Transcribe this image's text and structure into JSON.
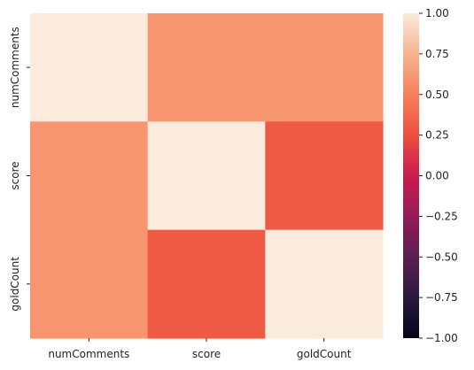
{
  "chart_data": {
    "type": "heatmap",
    "title": "",
    "xlabel": "",
    "ylabel": "",
    "x_categories": [
      "numComments",
      "score",
      "goldCount"
    ],
    "y_categories": [
      "numComments",
      "score",
      "goldCount"
    ],
    "values": [
      [
        1.0,
        0.6,
        0.6
      ],
      [
        0.6,
        1.0,
        0.3
      ],
      [
        0.6,
        0.3,
        1.0
      ]
    ],
    "colorbar": {
      "range": [
        -1.0,
        1.0
      ],
      "ticks": [
        1.0,
        0.75,
        0.5,
        0.25,
        0.0,
        -0.25,
        -0.5,
        -0.75,
        -1.0
      ],
      "tick_labels": [
        "1.00",
        "0.75",
        "0.50",
        "0.25",
        "0.00",
        "−0.25",
        "−0.50",
        "−0.75",
        "−1.00"
      ]
    },
    "colormap": "rocket",
    "grid": false
  }
}
